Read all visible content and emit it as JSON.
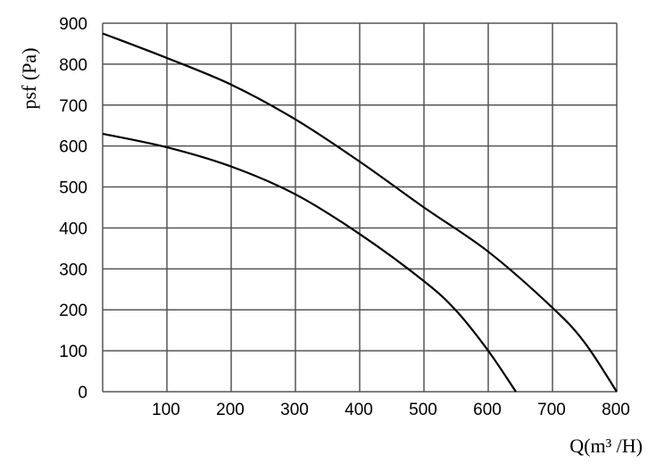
{
  "chart_data": {
    "type": "line",
    "title": "",
    "xlabel": "Q(m³ /H)",
    "ylabel": "psf (Pa)",
    "xlim": [
      0,
      800
    ],
    "ylim": [
      0,
      900
    ],
    "grid": true,
    "x_ticks": [
      100,
      200,
      300,
      400,
      500,
      600,
      700,
      800
    ],
    "y_ticks": [
      0,
      100,
      200,
      300,
      400,
      500,
      600,
      700,
      800,
      900
    ],
    "line_color": "#000000",
    "series": [
      {
        "x": [
          0,
          100,
          200,
          300,
          400,
          500,
          600,
          700,
          750,
          800
        ],
        "y": [
          875,
          815,
          750,
          665,
          562,
          450,
          342,
          205,
          120,
          0
        ]
      },
      {
        "x": [
          0,
          100,
          200,
          300,
          400,
          500,
          550,
          600,
          643
        ],
        "y": [
          630,
          597,
          550,
          482,
          385,
          270,
          198,
          100,
          0
        ]
      }
    ]
  }
}
